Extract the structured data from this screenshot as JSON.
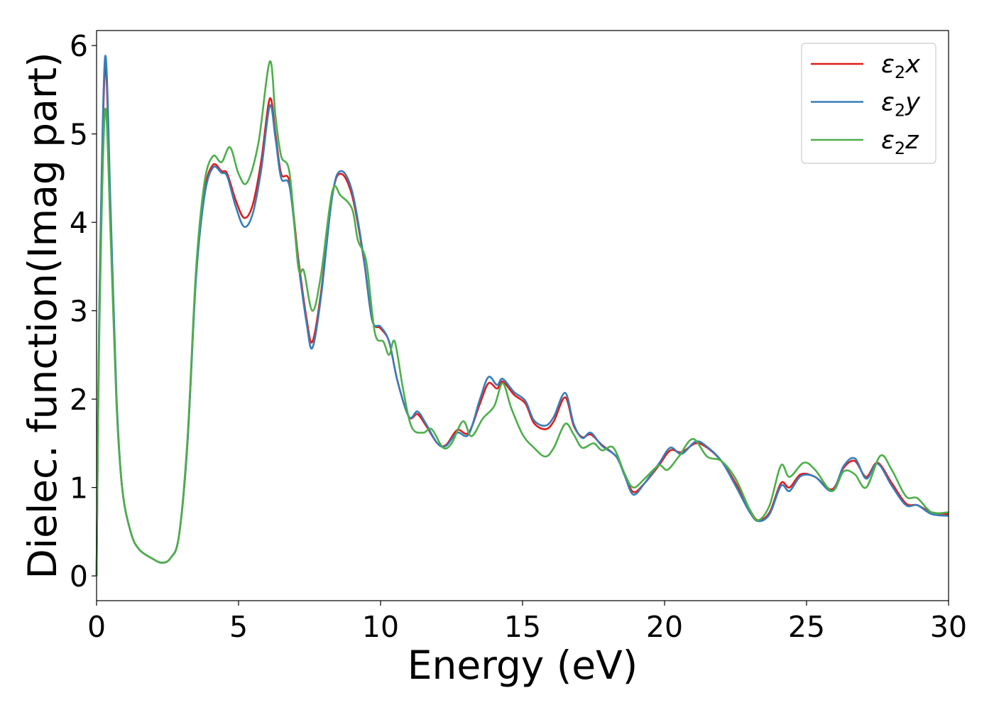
{
  "chart_data": {
    "type": "line",
    "title": "",
    "xlabel": "Energy (eV)",
    "ylabel": "Dielec. function(Imag part)",
    "xlim": [
      0,
      30
    ],
    "ylim": [
      -0.28,
      6.17
    ],
    "xticks": [
      0,
      5,
      10,
      15,
      20,
      25,
      30
    ],
    "yticks": [
      0,
      1,
      2,
      3,
      4,
      5,
      6
    ],
    "grid": false,
    "legend_position": "top-right",
    "series": [
      {
        "name": "ε2x",
        "color": "#e41a1c",
        "points": [
          [
            0,
            0
          ],
          [
            0.1,
            3.0
          ],
          [
            0.3,
            5.75
          ],
          [
            0.5,
            4.0
          ],
          [
            0.7,
            2.0
          ],
          [
            0.9,
            1.0
          ],
          [
            1.2,
            0.5
          ],
          [
            1.5,
            0.3
          ],
          [
            2.0,
            0.19
          ],
          [
            2.3,
            0.15
          ],
          [
            2.6,
            0.2
          ],
          [
            2.9,
            0.45
          ],
          [
            3.2,
            1.5
          ],
          [
            3.5,
            3.4
          ],
          [
            3.8,
            4.35
          ],
          [
            4.1,
            4.65
          ],
          [
            4.4,
            4.58
          ],
          [
            4.6,
            4.55
          ],
          [
            4.9,
            4.25
          ],
          [
            5.2,
            4.05
          ],
          [
            5.5,
            4.2
          ],
          [
            5.8,
            4.7
          ],
          [
            6.1,
            5.4
          ],
          [
            6.3,
            5.0
          ],
          [
            6.5,
            4.55
          ],
          [
            6.8,
            4.45
          ],
          [
            7.1,
            3.6
          ],
          [
            7.4,
            2.9
          ],
          [
            7.6,
            2.65
          ],
          [
            7.9,
            3.2
          ],
          [
            8.3,
            4.3
          ],
          [
            8.6,
            4.55
          ],
          [
            9.0,
            4.3
          ],
          [
            9.4,
            3.6
          ],
          [
            9.7,
            2.9
          ],
          [
            10.0,
            2.8
          ],
          [
            10.3,
            2.65
          ],
          [
            10.6,
            2.2
          ],
          [
            11.0,
            1.8
          ],
          [
            11.3,
            1.83
          ],
          [
            11.6,
            1.7
          ],
          [
            12.0,
            1.5
          ],
          [
            12.3,
            1.48
          ],
          [
            12.7,
            1.65
          ],
          [
            13.1,
            1.62
          ],
          [
            13.5,
            1.95
          ],
          [
            13.8,
            2.18
          ],
          [
            14.1,
            2.12
          ],
          [
            14.3,
            2.2
          ],
          [
            14.7,
            2.05
          ],
          [
            15.1,
            1.95
          ],
          [
            15.4,
            1.73
          ],
          [
            15.8,
            1.66
          ],
          [
            16.1,
            1.75
          ],
          [
            16.5,
            2.02
          ],
          [
            16.8,
            1.7
          ],
          [
            17.1,
            1.57
          ],
          [
            17.4,
            1.6
          ],
          [
            17.8,
            1.48
          ],
          [
            18.3,
            1.35
          ],
          [
            18.6,
            1.15
          ],
          [
            18.9,
            0.95
          ],
          [
            19.3,
            1.05
          ],
          [
            19.8,
            1.25
          ],
          [
            20.2,
            1.42
          ],
          [
            20.6,
            1.4
          ],
          [
            21.1,
            1.5
          ],
          [
            21.5,
            1.45
          ],
          [
            22.0,
            1.3
          ],
          [
            22.5,
            1.05
          ],
          [
            23.0,
            0.75
          ],
          [
            23.3,
            0.63
          ],
          [
            23.7,
            0.72
          ],
          [
            24.1,
            1.05
          ],
          [
            24.4,
            1.0
          ],
          [
            24.8,
            1.15
          ],
          [
            25.3,
            1.12
          ],
          [
            25.9,
            0.98
          ],
          [
            26.3,
            1.22
          ],
          [
            26.7,
            1.3
          ],
          [
            27.1,
            1.12
          ],
          [
            27.5,
            1.28
          ],
          [
            28.0,
            1.05
          ],
          [
            28.5,
            0.82
          ],
          [
            28.9,
            0.8
          ],
          [
            29.4,
            0.72
          ],
          [
            30,
            0.7
          ]
        ]
      },
      {
        "name": "ε2y",
        "color": "#377eb8",
        "points": [
          [
            0,
            0
          ],
          [
            0.1,
            3.1
          ],
          [
            0.3,
            5.87
          ],
          [
            0.5,
            4.1
          ],
          [
            0.7,
            2.05
          ],
          [
            0.9,
            1.0
          ],
          [
            1.2,
            0.5
          ],
          [
            1.5,
            0.3
          ],
          [
            2.0,
            0.19
          ],
          [
            2.3,
            0.15
          ],
          [
            2.6,
            0.2
          ],
          [
            2.9,
            0.45
          ],
          [
            3.2,
            1.5
          ],
          [
            3.5,
            3.35
          ],
          [
            3.8,
            4.3
          ],
          [
            4.1,
            4.62
          ],
          [
            4.4,
            4.56
          ],
          [
            4.6,
            4.52
          ],
          [
            4.9,
            4.18
          ],
          [
            5.2,
            3.95
          ],
          [
            5.5,
            4.1
          ],
          [
            5.8,
            4.6
          ],
          [
            6.1,
            5.32
          ],
          [
            6.3,
            4.95
          ],
          [
            6.5,
            4.5
          ],
          [
            6.8,
            4.4
          ],
          [
            7.1,
            3.55
          ],
          [
            7.4,
            2.85
          ],
          [
            7.6,
            2.58
          ],
          [
            7.9,
            3.15
          ],
          [
            8.3,
            4.3
          ],
          [
            8.6,
            4.58
          ],
          [
            9.0,
            4.35
          ],
          [
            9.4,
            3.62
          ],
          [
            9.7,
            2.9
          ],
          [
            10.0,
            2.82
          ],
          [
            10.3,
            2.65
          ],
          [
            10.6,
            2.2
          ],
          [
            11.0,
            1.8
          ],
          [
            11.3,
            1.86
          ],
          [
            11.6,
            1.72
          ],
          [
            12.0,
            1.5
          ],
          [
            12.3,
            1.47
          ],
          [
            12.7,
            1.62
          ],
          [
            13.1,
            1.6
          ],
          [
            13.5,
            2.0
          ],
          [
            13.8,
            2.25
          ],
          [
            14.1,
            2.16
          ],
          [
            14.3,
            2.23
          ],
          [
            14.7,
            2.08
          ],
          [
            15.1,
            1.98
          ],
          [
            15.4,
            1.76
          ],
          [
            15.8,
            1.7
          ],
          [
            16.1,
            1.8
          ],
          [
            16.5,
            2.07
          ],
          [
            16.8,
            1.72
          ],
          [
            17.1,
            1.56
          ],
          [
            17.4,
            1.62
          ],
          [
            17.8,
            1.47
          ],
          [
            18.3,
            1.35
          ],
          [
            18.6,
            1.13
          ],
          [
            18.9,
            0.92
          ],
          [
            19.3,
            1.05
          ],
          [
            19.8,
            1.27
          ],
          [
            20.2,
            1.45
          ],
          [
            20.6,
            1.38
          ],
          [
            21.1,
            1.52
          ],
          [
            21.5,
            1.46
          ],
          [
            22.0,
            1.3
          ],
          [
            22.5,
            1.02
          ],
          [
            23.0,
            0.72
          ],
          [
            23.3,
            0.62
          ],
          [
            23.7,
            0.7
          ],
          [
            24.1,
            1.02
          ],
          [
            24.4,
            0.96
          ],
          [
            24.8,
            1.13
          ],
          [
            25.3,
            1.12
          ],
          [
            25.9,
            0.96
          ],
          [
            26.3,
            1.24
          ],
          [
            26.7,
            1.33
          ],
          [
            27.1,
            1.1
          ],
          [
            27.5,
            1.27
          ],
          [
            28.0,
            1.02
          ],
          [
            28.5,
            0.8
          ],
          [
            28.9,
            0.8
          ],
          [
            29.4,
            0.7
          ],
          [
            30,
            0.68
          ]
        ]
      },
      {
        "name": "ε2z",
        "color": "#4daf4a",
        "points": [
          [
            0,
            0
          ],
          [
            0.1,
            2.8
          ],
          [
            0.3,
            5.27
          ],
          [
            0.5,
            3.8
          ],
          [
            0.7,
            1.95
          ],
          [
            0.9,
            1.0
          ],
          [
            1.2,
            0.5
          ],
          [
            1.5,
            0.3
          ],
          [
            2.0,
            0.19
          ],
          [
            2.3,
            0.15
          ],
          [
            2.6,
            0.2
          ],
          [
            2.9,
            0.45
          ],
          [
            3.2,
            1.55
          ],
          [
            3.5,
            3.45
          ],
          [
            3.8,
            4.45
          ],
          [
            4.1,
            4.75
          ],
          [
            4.4,
            4.68
          ],
          [
            4.7,
            4.85
          ],
          [
            5.0,
            4.55
          ],
          [
            5.3,
            4.45
          ],
          [
            5.7,
            4.9
          ],
          [
            6.1,
            5.82
          ],
          [
            6.3,
            5.2
          ],
          [
            6.5,
            4.75
          ],
          [
            6.8,
            4.55
          ],
          [
            7.1,
            3.5
          ],
          [
            7.3,
            3.45
          ],
          [
            7.6,
            3.0
          ],
          [
            7.9,
            3.4
          ],
          [
            8.3,
            4.35
          ],
          [
            8.6,
            4.3
          ],
          [
            9.0,
            4.15
          ],
          [
            9.2,
            3.8
          ],
          [
            9.5,
            3.55
          ],
          [
            9.8,
            2.75
          ],
          [
            10.1,
            2.65
          ],
          [
            10.3,
            2.5
          ],
          [
            10.5,
            2.65
          ],
          [
            10.8,
            2.1
          ],
          [
            11.1,
            1.68
          ],
          [
            11.5,
            1.62
          ],
          [
            11.8,
            1.66
          ],
          [
            12.2,
            1.45
          ],
          [
            12.5,
            1.5
          ],
          [
            12.9,
            1.75
          ],
          [
            13.2,
            1.58
          ],
          [
            13.6,
            1.78
          ],
          [
            14.0,
            1.92
          ],
          [
            14.3,
            2.18
          ],
          [
            14.6,
            1.9
          ],
          [
            15.0,
            1.6
          ],
          [
            15.4,
            1.45
          ],
          [
            15.8,
            1.35
          ],
          [
            16.1,
            1.45
          ],
          [
            16.5,
            1.72
          ],
          [
            16.8,
            1.6
          ],
          [
            17.1,
            1.45
          ],
          [
            17.5,
            1.5
          ],
          [
            17.8,
            1.42
          ],
          [
            18.2,
            1.45
          ],
          [
            18.6,
            1.15
          ],
          [
            18.9,
            1.0
          ],
          [
            19.3,
            1.1
          ],
          [
            19.8,
            1.25
          ],
          [
            20.1,
            1.2
          ],
          [
            20.5,
            1.35
          ],
          [
            21.0,
            1.55
          ],
          [
            21.5,
            1.35
          ],
          [
            22.0,
            1.3
          ],
          [
            22.5,
            1.1
          ],
          [
            23.0,
            0.75
          ],
          [
            23.3,
            0.63
          ],
          [
            23.7,
            0.8
          ],
          [
            24.1,
            1.25
          ],
          [
            24.4,
            1.12
          ],
          [
            24.9,
            1.28
          ],
          [
            25.3,
            1.2
          ],
          [
            25.9,
            0.96
          ],
          [
            26.3,
            1.18
          ],
          [
            26.7,
            1.15
          ],
          [
            27.1,
            1.0
          ],
          [
            27.6,
            1.36
          ],
          [
            28.0,
            1.2
          ],
          [
            28.5,
            0.9
          ],
          [
            28.9,
            0.88
          ],
          [
            29.4,
            0.72
          ],
          [
            30,
            0.72
          ]
        ]
      }
    ]
  }
}
